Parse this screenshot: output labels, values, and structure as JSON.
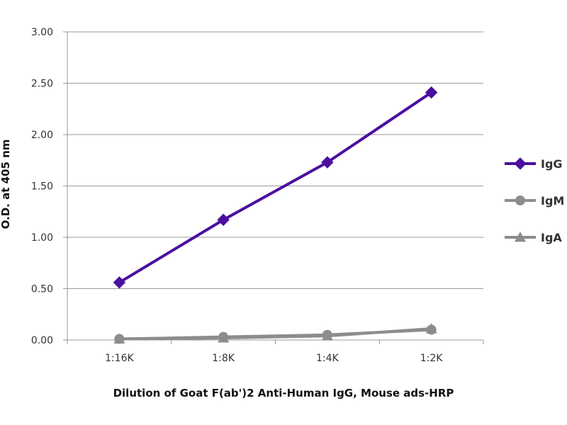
{
  "chart_data": {
    "type": "line",
    "categories": [
      "1:16K",
      "1:8K",
      "1:4K",
      "1:2K"
    ],
    "series": [
      {
        "name": "IgG",
        "values": [
          0.56,
          1.17,
          1.73,
          2.41
        ],
        "color": "#4B0FA0",
        "marker": "diamond"
      },
      {
        "name": "IgM",
        "values": [
          0.01,
          0.03,
          0.05,
          0.1
        ],
        "color": "#8C8C8C",
        "marker": "circle"
      },
      {
        "name": "IgA",
        "values": [
          0.01,
          0.02,
          0.04,
          0.11
        ],
        "color": "#8C8C8C",
        "marker": "triangle"
      }
    ],
    "ylabel": "O.D. at 405 nm",
    "xlabel": "Dilution of Goat F(ab')2 Anti-Human IgG, Mouse ads-HRP",
    "ylim": [
      0,
      3
    ],
    "yticks": [
      "0.00",
      "0.50",
      "1.00",
      "1.50",
      "2.00",
      "2.50",
      "3.00"
    ],
    "grid": true,
    "legend_position": "right"
  }
}
